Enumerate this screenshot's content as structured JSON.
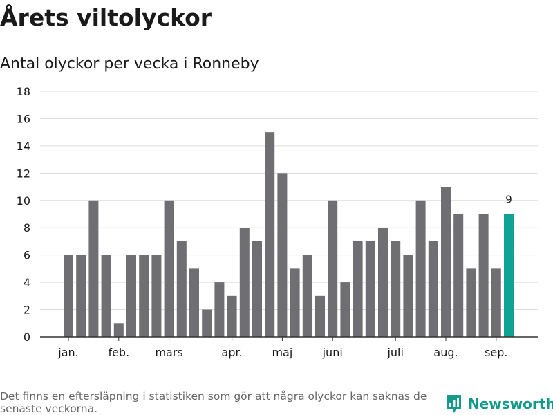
{
  "title": "Årets viltolyckor",
  "subtitle": "Antal olyckor per vecka i Ronneby",
  "footnote": "Det finns en eftersläpning i statistiken som gör att några olyckor kan saknas de senaste veckorna.",
  "brand": {
    "name": "Newsworthy",
    "logo_icon": "newsworthy-logo-icon",
    "color": "#149a8a"
  },
  "chart_data": {
    "type": "bar",
    "title": "Antal olyckor per vecka i Ronneby",
    "xlabel": "",
    "ylabel": "",
    "ylim": [
      0,
      18
    ],
    "yticks": [
      0,
      2,
      4,
      6,
      8,
      10,
      12,
      14,
      16,
      18
    ],
    "grid": true,
    "weeks": [
      1,
      2,
      3,
      4,
      5,
      6,
      7,
      8,
      9,
      10,
      11,
      12,
      13,
      14,
      15,
      16,
      17,
      18,
      19,
      20,
      21,
      22,
      23,
      24,
      25,
      26,
      27,
      28,
      29,
      30,
      31,
      32,
      33,
      34,
      35,
      36
    ],
    "values": [
      6,
      6,
      10,
      6,
      1,
      6,
      6,
      6,
      10,
      7,
      5,
      2,
      4,
      3,
      8,
      7,
      15,
      12,
      5,
      6,
      3,
      10,
      4,
      7,
      7,
      8,
      7,
      6,
      10,
      7,
      11,
      9,
      5,
      9,
      5,
      9
    ],
    "month_labels": [
      {
        "label": "jan.",
        "week": 1
      },
      {
        "label": "feb.",
        "week": 5
      },
      {
        "label": "mars",
        "week": 9
      },
      {
        "label": "apr.",
        "week": 14
      },
      {
        "label": "maj",
        "week": 18
      },
      {
        "label": "juni",
        "week": 22
      },
      {
        "label": "juli",
        "week": 27
      },
      {
        "label": "aug.",
        "week": 31
      },
      {
        "label": "sep.",
        "week": 35
      }
    ],
    "highlight": {
      "week": 36,
      "value": 9,
      "label": "9"
    },
    "colors": {
      "bar": "#6e6e73",
      "highlight": "#0fa396",
      "grid": "#dcdcdc",
      "axis": "#333333"
    }
  }
}
